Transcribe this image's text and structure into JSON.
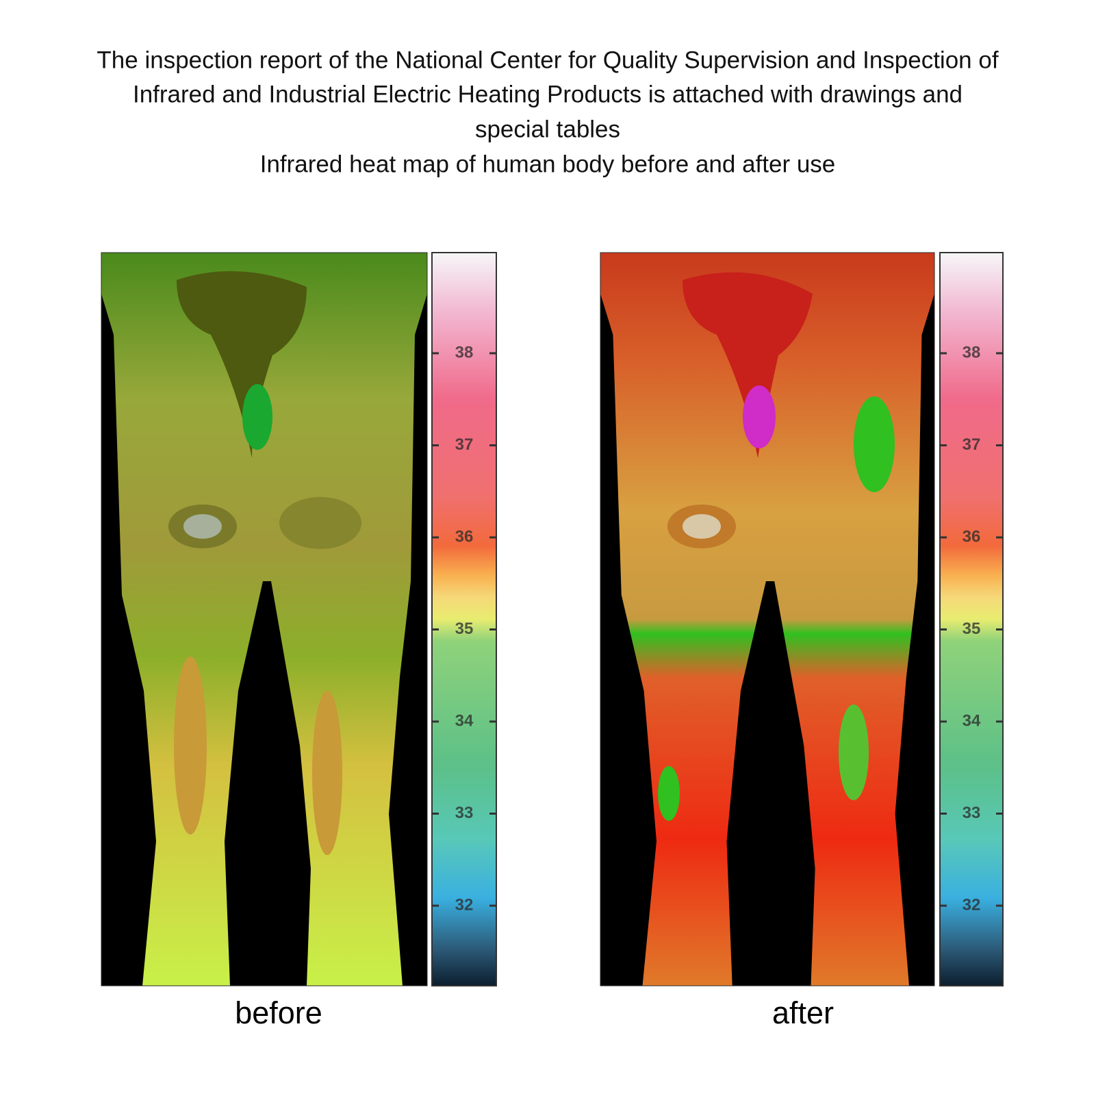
{
  "header": {
    "title_lines": [
      "The inspection report of the National Center for Quality Supervision and Inspection of",
      "Infrared and Industrial Electric Heating Products is attached with drawings and",
      "special tables"
    ],
    "subtitle": "Infrared heat map of human body before and after use"
  },
  "panels": [
    {
      "label": "before",
      "scale_ticks": [
        38,
        37,
        36,
        35,
        34,
        33,
        32
      ]
    },
    {
      "label": "after",
      "scale_ticks": [
        38,
        37,
        36,
        35,
        34,
        33,
        32
      ]
    }
  ]
}
